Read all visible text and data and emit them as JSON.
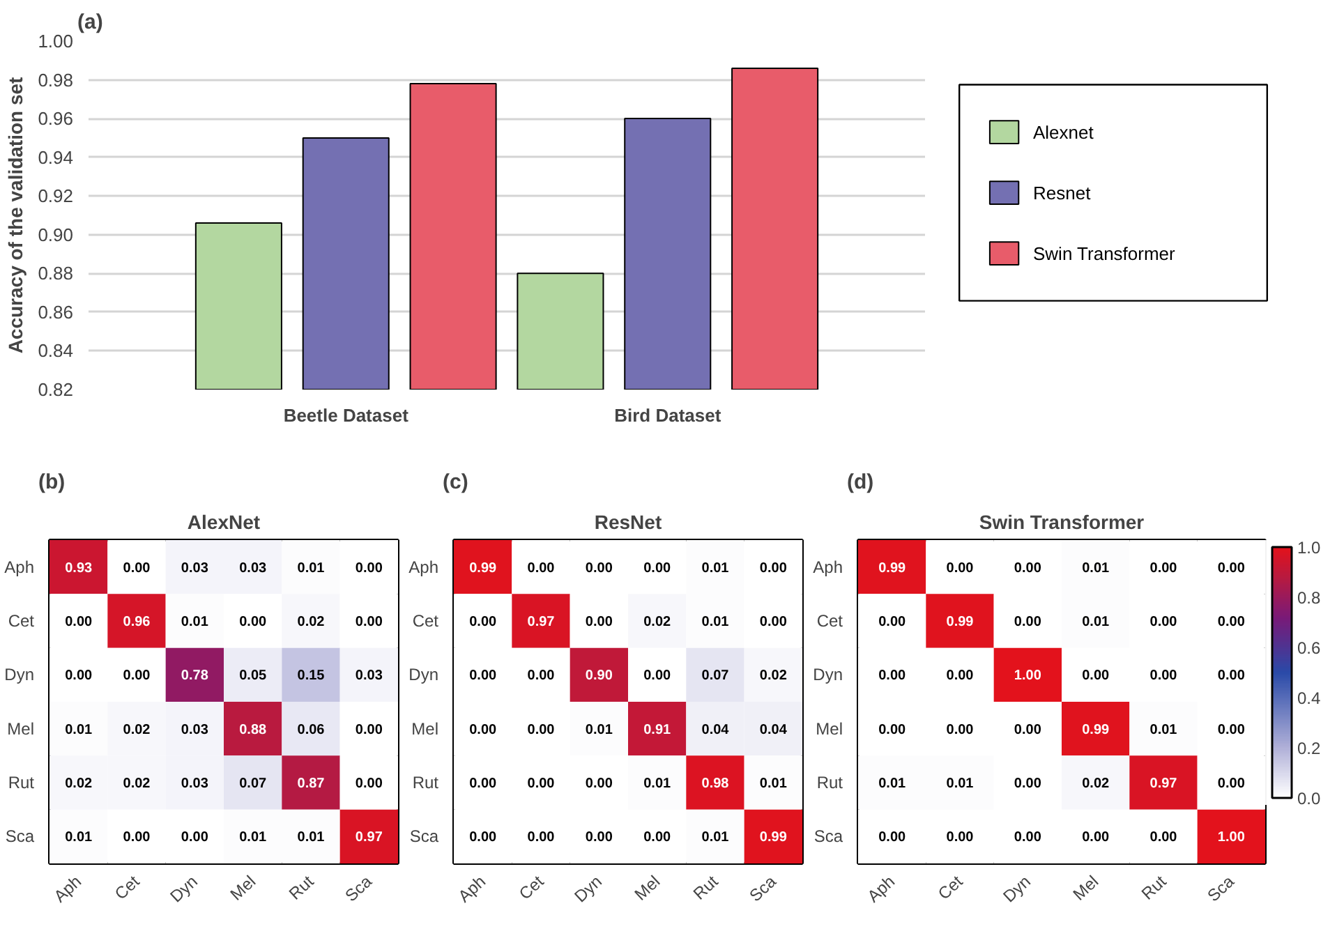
{
  "chart_data": [
    {
      "type": "bar",
      "annotations": [
        "(a)"
      ],
      "ylabel": "Accuracy of the validation set",
      "categories": [
        "Beetle Dataset",
        "Bird Dataset"
      ],
      "series": [
        {
          "name": "Alexnet",
          "color": "#b3d7a0",
          "values": [
            0.906,
            0.88
          ]
        },
        {
          "name": "Resnet",
          "color": "#7470b2",
          "values": [
            0.95,
            0.96
          ]
        },
        {
          "name": "Swin Transformer",
          "color": "#e85c6a",
          "values": [
            0.978,
            0.986
          ]
        }
      ],
      "ylim": [
        0.82,
        1.0
      ],
      "yticks": [
        {
          "value": 0.82,
          "label": "0.82"
        },
        {
          "value": 0.84,
          "label": "0.84"
        },
        {
          "value": 0.86,
          "label": "0.86"
        },
        {
          "value": 0.88,
          "label": "0.88"
        },
        {
          "value": 0.9,
          "label": "0.90"
        },
        {
          "value": 0.92,
          "label": "0.92"
        },
        {
          "value": 0.94,
          "label": "0.94"
        },
        {
          "value": 0.96,
          "label": "0.96"
        },
        {
          "value": 0.98,
          "label": "0.98"
        },
        {
          "value": 1.0,
          "label": "1.00"
        }
      ],
      "grid": "y",
      "legend": "right"
    },
    {
      "type": "heatmap",
      "title": "AlexNet",
      "annotations": [
        "(b)"
      ],
      "categories": [
        "Aph",
        "Cet",
        "Dyn",
        "Mel",
        "Rut",
        "Sca"
      ],
      "y_categories": [
        "Aph",
        "Cet",
        "Dyn",
        "Mel",
        "Rut",
        "Sca"
      ],
      "cells": [
        [
          0.93,
          0.0,
          0.03,
          0.03,
          0.01,
          0.0
        ],
        [
          0.0,
          0.96,
          0.01,
          0.0,
          0.02,
          0.0
        ],
        [
          0.0,
          0.0,
          0.78,
          0.05,
          0.15,
          0.03
        ],
        [
          0.01,
          0.02,
          0.03,
          0.88,
          0.06,
          0.0
        ],
        [
          0.02,
          0.02,
          0.03,
          0.07,
          0.87,
          0.0
        ],
        [
          0.01,
          0.0,
          0.0,
          0.01,
          0.01,
          0.97
        ]
      ],
      "cell_labels": [
        [
          "0.93",
          "0.00",
          "0.03",
          "0.03",
          "0.01",
          "0.00"
        ],
        [
          "0.00",
          "0.96",
          "0.01",
          "0.00",
          "0.02",
          "0.00"
        ],
        [
          "0.00",
          "0.00",
          "0.78",
          "0.05",
          "0.15",
          "0.03"
        ],
        [
          "0.01",
          "0.02",
          "0.03",
          "0.88",
          "0.06",
          "0.00"
        ],
        [
          "0.02",
          "0.02",
          "0.03",
          "0.07",
          "0.87",
          "0.00"
        ],
        [
          "0.01",
          "0.00",
          "0.00",
          "0.01",
          "0.01",
          "0.97"
        ]
      ]
    },
    {
      "type": "heatmap",
      "title": "ResNet",
      "annotations": [
        "(c)"
      ],
      "categories": [
        "Aph",
        "Cet",
        "Dyn",
        "Mel",
        "Rut",
        "Sca"
      ],
      "y_categories": [
        "Aph",
        "Cet",
        "Dyn",
        "Mel",
        "Rut",
        "Sca"
      ],
      "cells": [
        [
          0.99,
          0.0,
          0.0,
          0.0,
          0.01,
          0.0
        ],
        [
          0.0,
          0.97,
          0.0,
          0.02,
          0.01,
          0.0
        ],
        [
          0.0,
          0.0,
          0.9,
          0.0,
          0.07,
          0.02
        ],
        [
          0.0,
          0.0,
          0.01,
          0.91,
          0.04,
          0.04
        ],
        [
          0.0,
          0.0,
          0.0,
          0.01,
          0.98,
          0.01
        ],
        [
          0.0,
          0.0,
          0.0,
          0.0,
          0.01,
          0.99
        ]
      ],
      "cell_labels": [
        [
          "0.99",
          "0.00",
          "0.00",
          "0.00",
          "0.01",
          "0.00"
        ],
        [
          "0.00",
          "0.97",
          "0.00",
          "0.02",
          "0.01",
          "0.00"
        ],
        [
          "0.00",
          "0.00",
          "0.90",
          "0.00",
          "0.07",
          "0.02"
        ],
        [
          "0.00",
          "0.00",
          "0.01",
          "0.91",
          "0.04",
          "0.04"
        ],
        [
          "0.00",
          "0.00",
          "0.00",
          "0.01",
          "0.98",
          "0.01"
        ],
        [
          "0.00",
          "0.00",
          "0.00",
          "0.00",
          "0.01",
          "0.99"
        ]
      ]
    },
    {
      "type": "heatmap",
      "title": "Swin Transformer",
      "annotations": [
        "(d)"
      ],
      "categories": [
        "Aph",
        "Cet",
        "Dyn",
        "Mel",
        "Rut",
        "Sca"
      ],
      "y_categories": [
        "Aph",
        "Cet",
        "Dyn",
        "Mel",
        "Rut",
        "Sca"
      ],
      "cells": [
        [
          0.99,
          0.0,
          0.0,
          0.01,
          0.0,
          0.0
        ],
        [
          0.0,
          0.99,
          0.0,
          0.01,
          0.0,
          0.0
        ],
        [
          0.0,
          0.0,
          1.0,
          0.0,
          0.0,
          0.0
        ],
        [
          0.0,
          0.0,
          0.0,
          0.99,
          0.01,
          0.0
        ],
        [
          0.01,
          0.01,
          0.0,
          0.02,
          0.97,
          0.0
        ],
        [
          0.0,
          0.0,
          0.0,
          0.0,
          0.0,
          1.0
        ]
      ],
      "cell_labels": [
        [
          "0.99",
          "0.00",
          "0.00",
          "0.01",
          "0.00",
          "0.00"
        ],
        [
          "0.00",
          "0.99",
          "0.00",
          "0.01",
          "0.00",
          "0.00"
        ],
        [
          "0.00",
          "0.00",
          "1.00",
          "0.00",
          "0.00",
          "0.00"
        ],
        [
          "0.00",
          "0.00",
          "0.00",
          "0.99",
          "0.01",
          "0.00"
        ],
        [
          "0.01",
          "0.01",
          "0.00",
          "0.02",
          "0.97",
          "0.00"
        ],
        [
          "0.00",
          "0.00",
          "0.00",
          "0.00",
          "0.00",
          "1.00"
        ]
      ],
      "clim": [
        0,
        1
      ],
      "cticks": [
        {
          "value": 0,
          "label": "0.0"
        },
        {
          "value": 0.2,
          "label": "0.2"
        },
        {
          "value": 0.4,
          "label": "0.4"
        },
        {
          "value": 0.6,
          "label": "0.6"
        },
        {
          "value": 0.8,
          "label": "0.8"
        },
        {
          "value": 1,
          "label": "1.0"
        }
      ]
    }
  ]
}
